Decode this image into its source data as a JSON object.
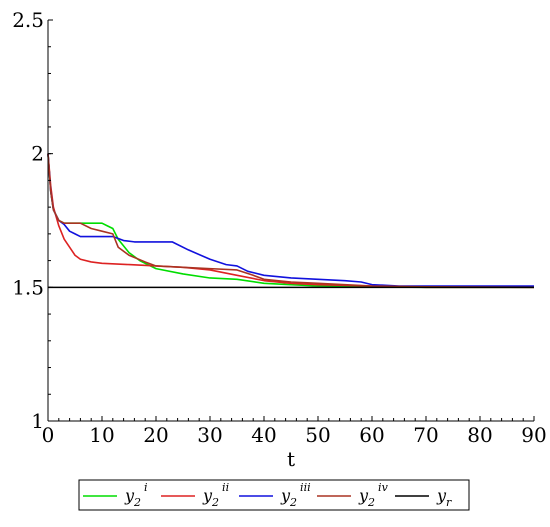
{
  "chart_data": {
    "type": "line",
    "title": "",
    "xlabel": "t",
    "ylabel": "",
    "xlim": [
      0,
      90
    ],
    "ylim": [
      1,
      2.5
    ],
    "x_ticks": [
      "0",
      "10",
      "20",
      "30",
      "40",
      "50",
      "60",
      "70",
      "80",
      "90"
    ],
    "y_ticks": [
      "1",
      "1.5",
      "2",
      "2.5"
    ],
    "grid": false,
    "legend_position": "bottom",
    "series": [
      {
        "name": "y2i",
        "label_base": "y",
        "label_sub": "2",
        "label_sup": "i",
        "color": "#00dd00",
        "points": [
          [
            0,
            2.0
          ],
          [
            0.5,
            1.86
          ],
          [
            1,
            1.79
          ],
          [
            2,
            1.75
          ],
          [
            3,
            1.74
          ],
          [
            6,
            1.74
          ],
          [
            10,
            1.74
          ],
          [
            11,
            1.73
          ],
          [
            12,
            1.72
          ],
          [
            13,
            1.68
          ],
          [
            15,
            1.63
          ],
          [
            17,
            1.6
          ],
          [
            20,
            1.57
          ],
          [
            25,
            1.55
          ],
          [
            30,
            1.535
          ],
          [
            35,
            1.53
          ],
          [
            40,
            1.515
          ],
          [
            45,
            1.51
          ],
          [
            50,
            1.505
          ],
          [
            60,
            1.502
          ],
          [
            70,
            1.5
          ],
          [
            90,
            1.5
          ]
        ]
      },
      {
        "name": "y2ii",
        "label_base": "y",
        "label_sub": "2",
        "label_sup": "ii",
        "color": "#dd2222",
        "points": [
          [
            0,
            2.0
          ],
          [
            0.5,
            1.88
          ],
          [
            1,
            1.8
          ],
          [
            2,
            1.73
          ],
          [
            3,
            1.68
          ],
          [
            4,
            1.65
          ],
          [
            5,
            1.62
          ],
          [
            6,
            1.605
          ],
          [
            8,
            1.595
          ],
          [
            10,
            1.59
          ],
          [
            15,
            1.585
          ],
          [
            20,
            1.58
          ],
          [
            25,
            1.575
          ],
          [
            30,
            1.565
          ],
          [
            35,
            1.545
          ],
          [
            40,
            1.525
          ],
          [
            45,
            1.515
          ],
          [
            50,
            1.51
          ],
          [
            60,
            1.505
          ],
          [
            70,
            1.5
          ],
          [
            90,
            1.5
          ]
        ]
      },
      {
        "name": "y2iii",
        "label_base": "y",
        "label_sub": "2",
        "label_sup": "iii",
        "color": "#1111dd",
        "points": [
          [
            0,
            2.0
          ],
          [
            0.5,
            1.86
          ],
          [
            1,
            1.79
          ],
          [
            2,
            1.75
          ],
          [
            3,
            1.735
          ],
          [
            4,
            1.71
          ],
          [
            5,
            1.7
          ],
          [
            6,
            1.69
          ],
          [
            8,
            1.69
          ],
          [
            12,
            1.69
          ],
          [
            14,
            1.675
          ],
          [
            16,
            1.67
          ],
          [
            20,
            1.67
          ],
          [
            23,
            1.67
          ],
          [
            26,
            1.64
          ],
          [
            30,
            1.605
          ],
          [
            33,
            1.585
          ],
          [
            35,
            1.58
          ],
          [
            37,
            1.56
          ],
          [
            40,
            1.545
          ],
          [
            45,
            1.535
          ],
          [
            50,
            1.53
          ],
          [
            55,
            1.525
          ],
          [
            58,
            1.52
          ],
          [
            60,
            1.51
          ],
          [
            65,
            1.505
          ],
          [
            70,
            1.505
          ],
          [
            80,
            1.505
          ],
          [
            90,
            1.505
          ]
        ]
      },
      {
        "name": "y2iv",
        "label_base": "y",
        "label_sub": "2",
        "label_sup": "iv",
        "color": "#aa3322",
        "points": [
          [
            0,
            2.0
          ],
          [
            0.5,
            1.86
          ],
          [
            1,
            1.79
          ],
          [
            2,
            1.75
          ],
          [
            3,
            1.74
          ],
          [
            6,
            1.74
          ],
          [
            8,
            1.72
          ],
          [
            10,
            1.71
          ],
          [
            12,
            1.7
          ],
          [
            13,
            1.65
          ],
          [
            15,
            1.62
          ],
          [
            18,
            1.595
          ],
          [
            20,
            1.58
          ],
          [
            25,
            1.575
          ],
          [
            30,
            1.57
          ],
          [
            35,
            1.565
          ],
          [
            38,
            1.545
          ],
          [
            40,
            1.53
          ],
          [
            45,
            1.52
          ],
          [
            50,
            1.515
          ],
          [
            55,
            1.51
          ],
          [
            60,
            1.505
          ],
          [
            70,
            1.502
          ],
          [
            90,
            1.5
          ]
        ]
      },
      {
        "name": "yr",
        "label_base": "y",
        "label_sub": "r",
        "label_sup": "",
        "color": "#000000",
        "points": [
          [
            0,
            1.5
          ],
          [
            90,
            1.5
          ]
        ]
      }
    ]
  }
}
